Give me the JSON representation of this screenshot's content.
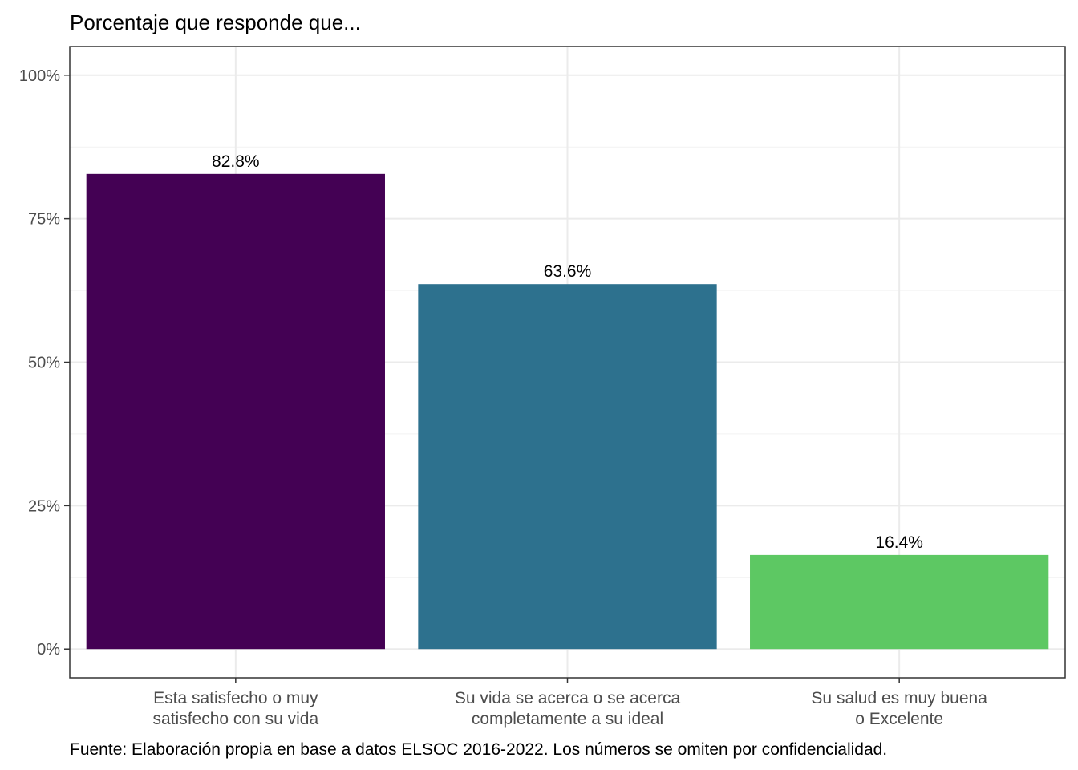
{
  "chart_data": {
    "type": "bar",
    "title": "Porcentaje que responde que...",
    "caption": "Fuente: Elaboración propia en base a datos ELSOC 2016-2022. Los números se omiten por confidencialidad.",
    "categories": [
      [
        "Esta satisfecho o muy",
        "satisfecho con su vida"
      ],
      [
        "Su vida se acerca o se acerca",
        "completamente a su ideal"
      ],
      [
        "Su salud es muy buena",
        "o Excelente"
      ]
    ],
    "values": [
      82.8,
      63.6,
      16.4
    ],
    "value_labels": [
      "82.8%",
      "63.6%",
      "16.4%"
    ],
    "colors": [
      "#440154",
      "#2D718E",
      "#5DC863"
    ],
    "y_ticks": [
      0,
      25,
      50,
      75,
      100
    ],
    "y_tick_labels": [
      "0%",
      "25%",
      "50%",
      "75%",
      "100%"
    ],
    "ylim": [
      -5,
      105
    ],
    "xlabel": "",
    "ylabel": "",
    "grid": true,
    "legend": "none"
  }
}
